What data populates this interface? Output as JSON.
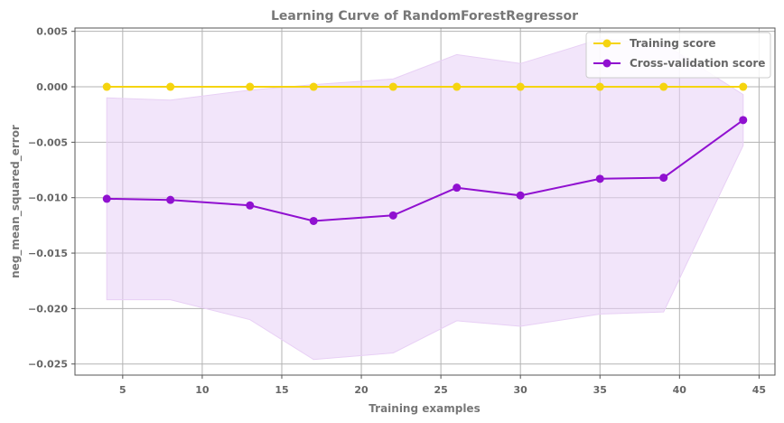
{
  "chart_data": {
    "type": "line",
    "title": "Learning Curve of RandomForestRegressor",
    "xlabel": "Training examples",
    "ylabel": "neg_mean_squared_error",
    "xlim": [
      2.0,
      46.0
    ],
    "ylim": [
      -0.026,
      0.0053
    ],
    "xticks": [
      5,
      10,
      15,
      20,
      25,
      30,
      35,
      40,
      45
    ],
    "xtick_labels": [
      "5",
      "10",
      "15",
      "20",
      "25",
      "30",
      "35",
      "40",
      "45"
    ],
    "yticks": [
      0.005,
      0.0,
      -0.005,
      -0.01,
      -0.015,
      -0.02,
      -0.025
    ],
    "ytick_labels": [
      "0.005",
      "0.000",
      "−0.005",
      "−0.010",
      "−0.015",
      "−0.020",
      "−0.025"
    ],
    "grid": true,
    "legend_position": "top-right",
    "x": [
      4,
      8,
      13,
      17,
      22,
      26,
      30,
      35,
      39,
      44
    ],
    "series": [
      {
        "name": "Training score",
        "color": "#f5d40f",
        "values": [
          0.0,
          0.0,
          0.0,
          0.0,
          0.0,
          0.0,
          0.0,
          0.0,
          0.0,
          0.0
        ],
        "band_lower": [
          0.0,
          0.0,
          0.0,
          0.0,
          0.0,
          0.0,
          0.0,
          0.0,
          0.0,
          0.0
        ],
        "band_upper": [
          0.0,
          0.0,
          0.0,
          0.0,
          0.0,
          0.0,
          0.0,
          0.0,
          0.0,
          0.0
        ]
      },
      {
        "name": "Cross-validation score",
        "color": "#9010d0",
        "band_color": "#e8d0f5",
        "values": [
          -0.0101,
          -0.0102,
          -0.0107,
          -0.0121,
          -0.0116,
          -0.0091,
          -0.0098,
          -0.0083,
          -0.0082,
          -0.003
        ],
        "band_lower": [
          -0.0192,
          -0.0192,
          -0.021,
          -0.0246,
          -0.024,
          -0.0211,
          -0.0216,
          -0.0205,
          -0.0203,
          -0.0053
        ],
        "band_upper": [
          -0.001,
          -0.0012,
          -0.0003,
          0.0002,
          0.0007,
          0.0029,
          0.0021,
          0.0043,
          0.0039,
          -0.0007
        ]
      }
    ]
  }
}
